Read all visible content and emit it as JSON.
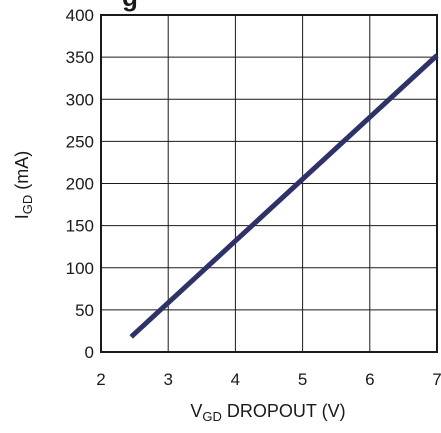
{
  "chart_data": {
    "type": "line",
    "title_fragment": "g",
    "xlabel": {
      "main": "V",
      "sub": "GD",
      "rest": " DROPOUT (V)"
    },
    "ylabel": {
      "main": "I",
      "sub": "GD",
      "rest": " (mA)"
    },
    "xlim": [
      2,
      7
    ],
    "ylim": [
      0,
      400
    ],
    "x_ticks": [
      2,
      3,
      4,
      5,
      6,
      7
    ],
    "y_ticks": [
      0,
      50,
      100,
      150,
      200,
      250,
      300,
      350,
      400
    ],
    "grid": true,
    "series": [
      {
        "color": "#2e3268",
        "x": [
          2.45,
          7.0
        ],
        "y": [
          18,
          352
        ]
      }
    ]
  }
}
